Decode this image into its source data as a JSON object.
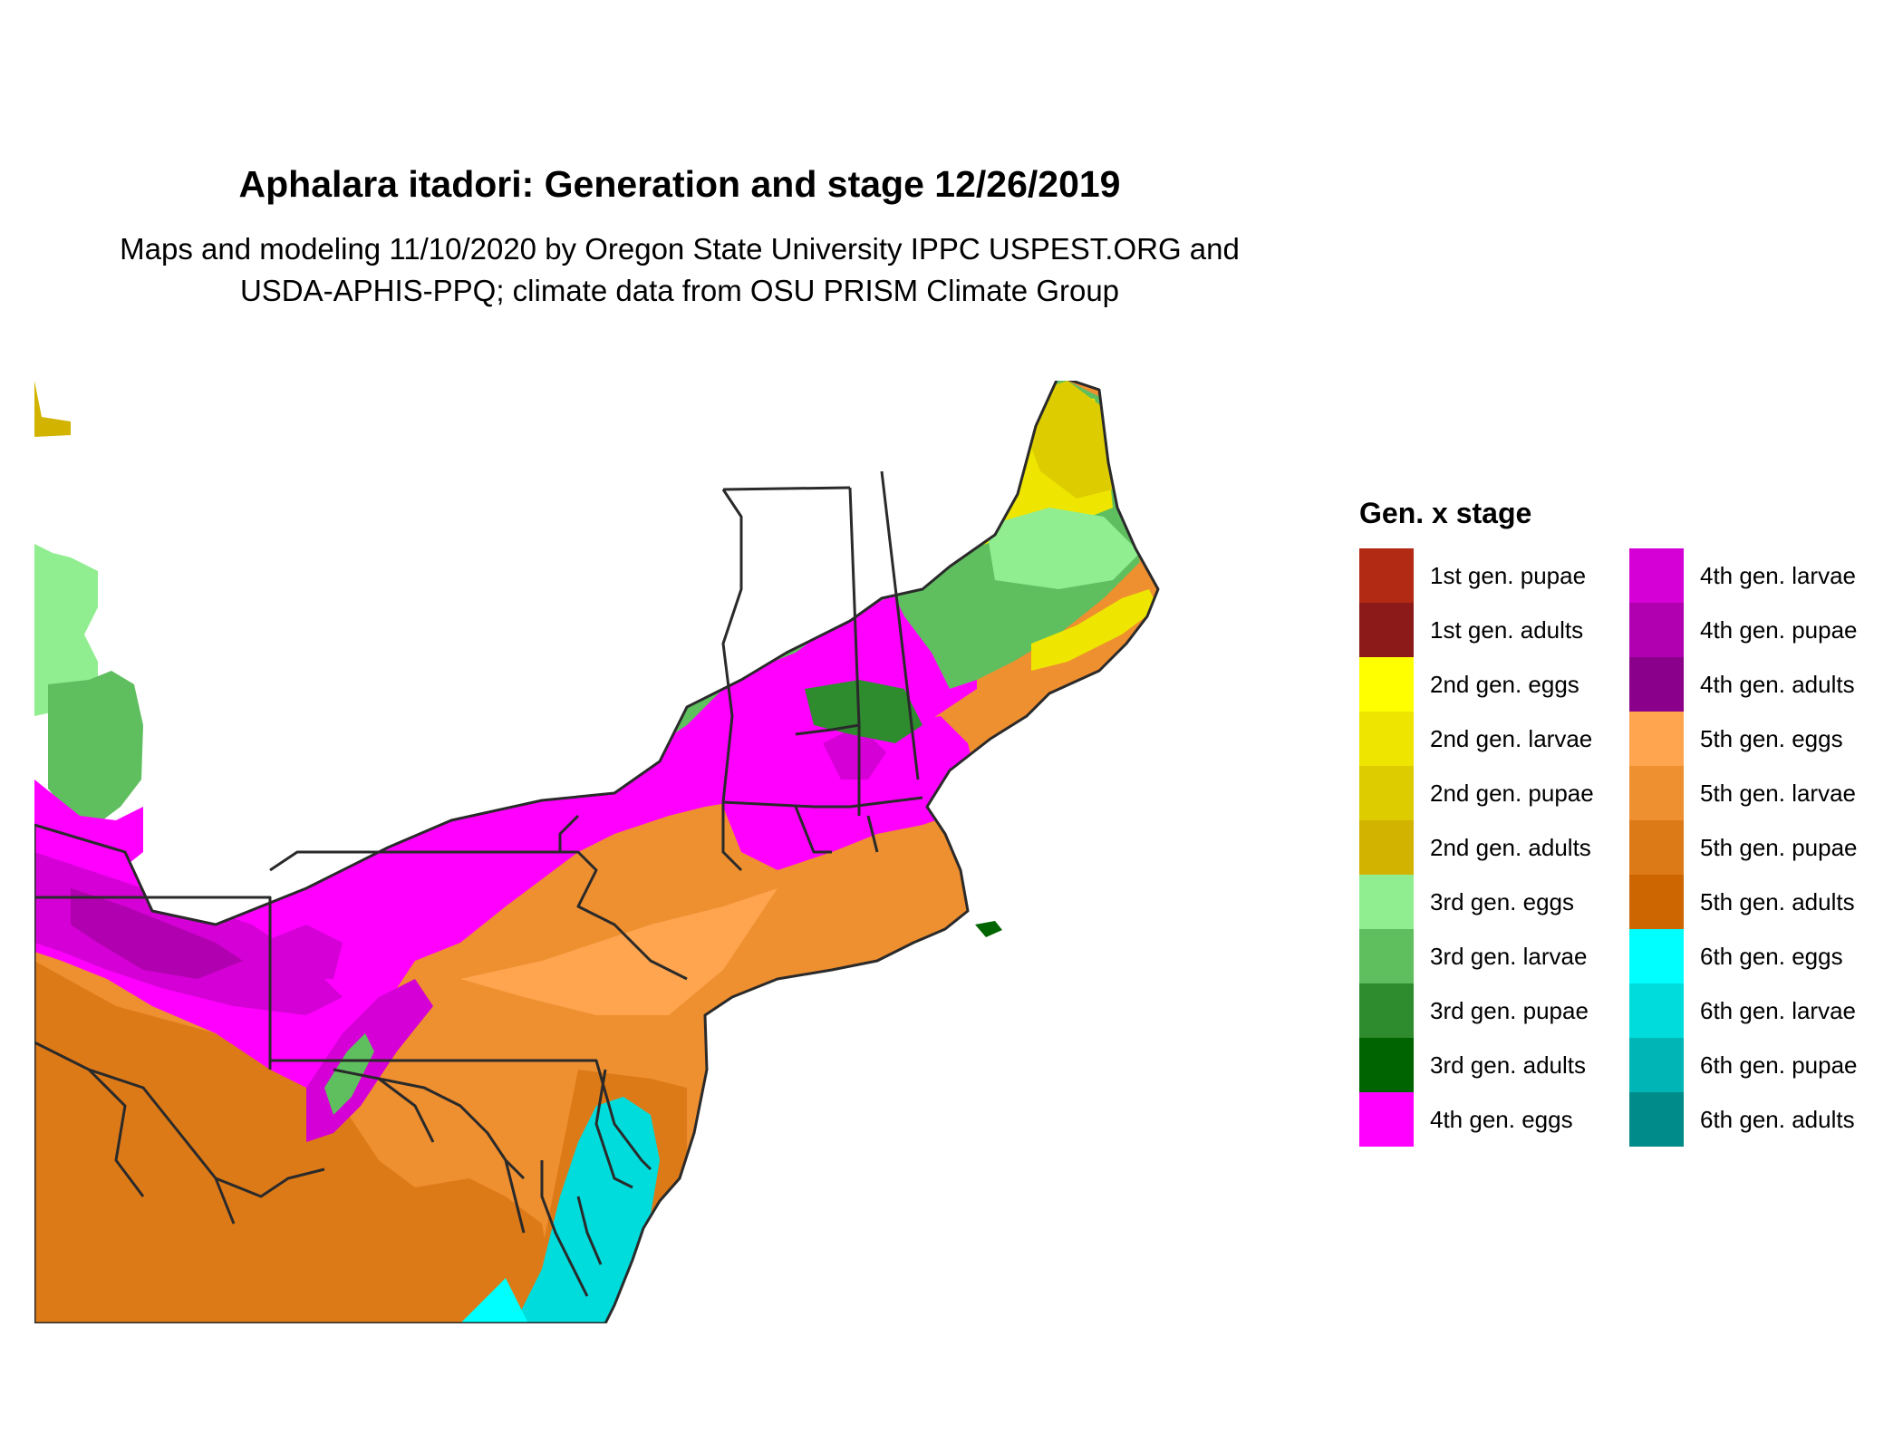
{
  "title": "Aphalara itadori: Generation and stage 12/26/2019",
  "subtitle_lines": [
    "Maps and modeling 11/10/2020 by Oregon State University IPPC USPEST.ORG and",
    "USDA-APHIS-PPQ; climate data from OSU PRISM Climate Group"
  ],
  "legend": {
    "title": "Gen. x stage",
    "columns": [
      [
        {
          "label": "1st gen. pupae",
          "color": "#B22914"
        },
        {
          "label": "1st gen. adults",
          "color": "#8C1A18"
        },
        {
          "label": "2nd gen. eggs",
          "color": "#FFFF00"
        },
        {
          "label": "2nd gen. larvae",
          "color": "#EEE600"
        },
        {
          "label": "2nd gen. pupae",
          "color": "#DDCD00"
        },
        {
          "label": "2nd gen. adults",
          "color": "#D2B400"
        },
        {
          "label": "3rd gen. eggs",
          "color": "#90EE90"
        },
        {
          "label": "3rd gen. larvae",
          "color": "#5FBF5F"
        },
        {
          "label": "3rd gen. pupae",
          "color": "#2E8B2E"
        },
        {
          "label": "3rd gen. adults",
          "color": "#006400"
        },
        {
          "label": "4th gen. eggs",
          "color": "#FF00FF"
        }
      ],
      [
        {
          "label": "4th gen. larvae",
          "color": "#D500D5"
        },
        {
          "label": "4th gen. pupae",
          "color": "#B000B0"
        },
        {
          "label": "4th gen. adults",
          "color": "#8B008B"
        },
        {
          "label": "5th gen. eggs",
          "color": "#FFA54F"
        },
        {
          "label": "5th gen. larvae",
          "color": "#EE8F30"
        },
        {
          "label": "5th gen. pupae",
          "color": "#DD7A18"
        },
        {
          "label": "5th gen. adults",
          "color": "#CD6600"
        },
        {
          "label": "6th gen. eggs",
          "color": "#00FFFF"
        },
        {
          "label": "6th gen. larvae",
          "color": "#00DCDC"
        },
        {
          "label": "6th gen. pupae",
          "color": "#00B5B5"
        },
        {
          "label": "6th gen. adults",
          "color": "#008B8B"
        }
      ]
    ]
  },
  "map_colors": {
    "orange_dark": "#DD7A18",
    "orange": "#EE8F30",
    "orange_light": "#FFA54F",
    "cyan": "#00DCDC",
    "cyan_light": "#00FFFF",
    "magenta": "#FF00FF",
    "magenta_dark": "#D500D5",
    "purple": "#B000B0",
    "green_light": "#90EE90",
    "green": "#5FBF5F",
    "green_mid": "#2E8B2E",
    "green_dark": "#006400",
    "yellow": "#EEE600",
    "yellow_mid": "#DDCD00",
    "yellow_dark": "#D2B400",
    "border": "#2A2A2A"
  }
}
